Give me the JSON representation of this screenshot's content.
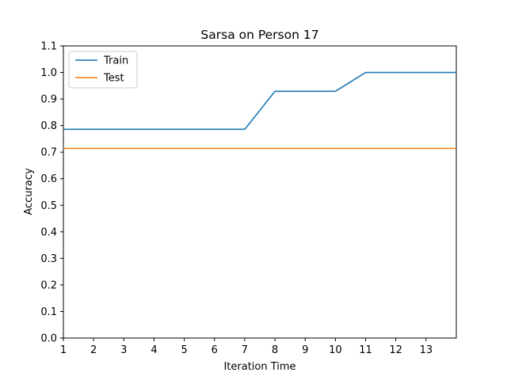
{
  "chart_data": {
    "type": "line",
    "title": "Sarsa on Person 17",
    "xlabel": "Iteration Time",
    "ylabel": "Accuracy",
    "xlim": [
      1,
      14
    ],
    "ylim": [
      0.0,
      1.1
    ],
    "xticks": [
      1,
      2,
      3,
      4,
      5,
      6,
      7,
      8,
      9,
      10,
      11,
      12,
      13
    ],
    "yticks": [
      0.0,
      0.1,
      0.2,
      0.3,
      0.4,
      0.5,
      0.6,
      0.7,
      0.8,
      0.9,
      1.0,
      1.1
    ],
    "x": [
      1,
      2,
      3,
      4,
      5,
      6,
      7,
      8,
      9,
      10,
      11,
      12,
      13,
      14
    ],
    "series": [
      {
        "name": "Train",
        "color": "#1f77b4",
        "values": [
          0.786,
          0.786,
          0.786,
          0.786,
          0.786,
          0.786,
          0.786,
          0.929,
          0.929,
          0.929,
          1.0,
          1.0,
          1.0,
          1.0
        ]
      },
      {
        "name": "Test",
        "color": "#ff7f0e",
        "values": [
          0.714,
          0.714,
          0.714,
          0.714,
          0.714,
          0.714,
          0.714,
          0.714,
          0.714,
          0.714,
          0.714,
          0.714,
          0.714,
          0.714
        ]
      }
    ],
    "grid": false,
    "legend_position": "top-left"
  }
}
